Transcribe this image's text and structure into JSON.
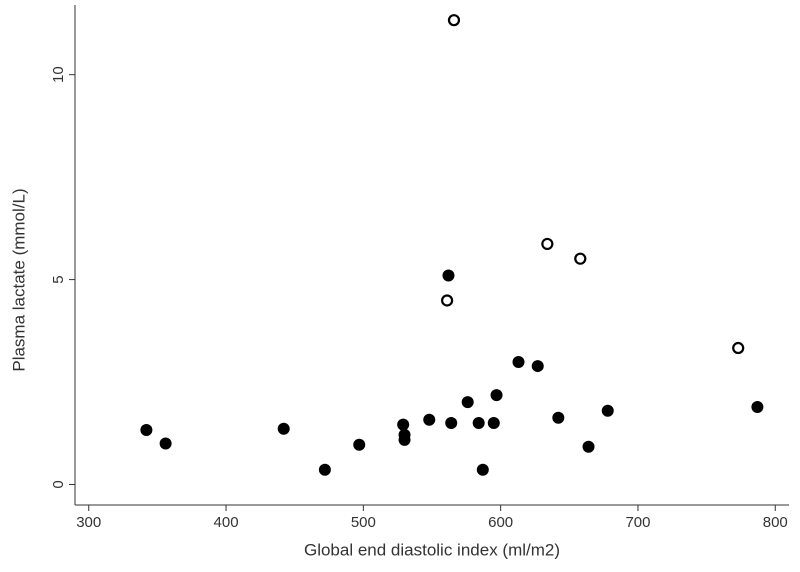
{
  "chart_data": {
    "type": "scatter",
    "x_label": "Global end diastolic index (ml/m2)",
    "y_label": "Plasma lactate (mmol/L)",
    "xlim": [
      290,
      810
    ],
    "ylim": [
      -0.5,
      11.7
    ],
    "xticks": [
      300,
      400,
      500,
      600,
      700,
      800
    ],
    "yticks": [
      0,
      5,
      10
    ],
    "grid": false,
    "series": [
      {
        "color": "#000000",
        "marker": "filled",
        "x": [
          342,
          356,
          442,
          472,
          497,
          529,
          530,
          530,
          548,
          562,
          564,
          576,
          584,
          587,
          595,
          597,
          613,
          627,
          642,
          664,
          678,
          787
        ],
        "values": [
          1.33,
          1.0,
          1.36,
          0.36,
          0.97,
          1.46,
          1.09,
          1.21,
          1.58,
          5.1,
          1.5,
          2.01,
          1.5,
          0.36,
          1.5,
          2.18,
          2.99,
          2.89,
          1.63,
          0.92,
          1.8,
          1.89
        ]
      },
      {
        "color": "#000000",
        "marker": "open",
        "x": [
          566,
          561,
          634,
          658,
          773
        ],
        "values": [
          11.33,
          4.49,
          5.87,
          5.51,
          3.33
        ]
      }
    ]
  }
}
